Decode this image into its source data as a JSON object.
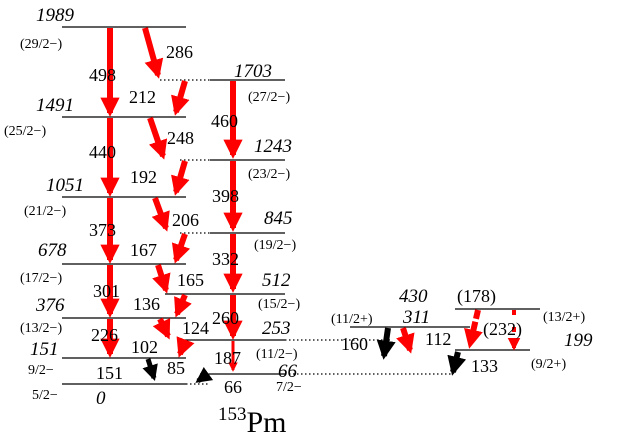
{
  "nucleus": {
    "mass": "153",
    "symbol": "Pm"
  },
  "colors": {
    "red_transition": "#ff0000",
    "black_transition": "#000000",
    "level_line": "#000000"
  },
  "levels": [
    {
      "energy": "1989",
      "spin": "(29/2−)"
    },
    {
      "energy": "1703",
      "spin": "(27/2−)"
    },
    {
      "energy": "1491",
      "spin": "(25/2−)"
    },
    {
      "energy": "1243",
      "spin": "(23/2−)"
    },
    {
      "energy": "1051",
      "spin": "(21/2−)"
    },
    {
      "energy": "845",
      "spin": "(19/2−)"
    },
    {
      "energy": "678",
      "spin": "(17/2−)"
    },
    {
      "energy": "512",
      "spin": "(15/2−)"
    },
    {
      "energy": "376",
      "spin": "(13/2−)"
    },
    {
      "energy": "253",
      "spin": "(11/2−)"
    },
    {
      "energy": "151",
      "spin": "9/2−"
    },
    {
      "energy": "66",
      "spin": "7/2−"
    },
    {
      "energy": "0",
      "spin": "5/2−"
    },
    {
      "energy": "430",
      "spin": "(13/2+)"
    },
    {
      "energy": "311",
      "spin": "(11/2+)"
    },
    {
      "energy": "199",
      "spin": "(9/2+)"
    }
  ],
  "transitions": [
    {
      "energy": "498",
      "color": "red"
    },
    {
      "energy": "286",
      "color": "red"
    },
    {
      "energy": "212",
      "color": "red"
    },
    {
      "energy": "460",
      "color": "red"
    },
    {
      "energy": "440",
      "color": "red"
    },
    {
      "energy": "248",
      "color": "red"
    },
    {
      "energy": "192",
      "color": "red"
    },
    {
      "energy": "398",
      "color": "red"
    },
    {
      "energy": "373",
      "color": "red"
    },
    {
      "energy": "206",
      "color": "red"
    },
    {
      "energy": "167",
      "color": "red"
    },
    {
      "energy": "332",
      "color": "red"
    },
    {
      "energy": "301",
      "color": "red"
    },
    {
      "energy": "165",
      "color": "red"
    },
    {
      "energy": "136",
      "color": "red"
    },
    {
      "energy": "260",
      "color": "red"
    },
    {
      "energy": "226",
      "color": "red"
    },
    {
      "energy": "124",
      "color": "red"
    },
    {
      "energy": "102",
      "color": "red"
    },
    {
      "energy": "187",
      "color": "red"
    },
    {
      "energy": "151",
      "color": "black"
    },
    {
      "energy": "85",
      "color": "black"
    },
    {
      "energy": "66",
      "color": "black"
    },
    {
      "energy": "160",
      "color": "black"
    },
    {
      "energy": "(178)",
      "color": "red"
    },
    {
      "energy": "(232)",
      "color": "red"
    },
    {
      "energy": "112",
      "color": "red"
    },
    {
      "energy": "133",
      "color": "black"
    }
  ]
}
